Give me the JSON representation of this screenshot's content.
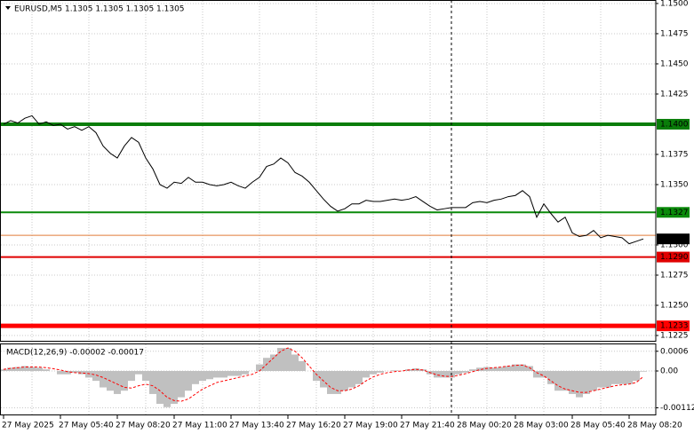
{
  "chart_data": [
    {
      "type": "line",
      "title": "EURUSD,M5  1.1305 1.1305 1.1305 1.1305",
      "x_labels": [
        "27 May 2025",
        "27 May 05:40",
        "27 May 08:20",
        "27 May 11:00",
        "27 May 13:40",
        "27 May 16:20",
        "27 May 19:00",
        "27 May 21:40",
        "28 May 00:20",
        "28 May 03:00",
        "28 May 05:40",
        "28 May 08:20"
      ],
      "series": [
        {
          "color": "#000000",
          "values": [
            1.14,
            1.1403,
            1.1401,
            1.1405,
            1.1407,
            1.14,
            1.1402,
            1.1399,
            1.14,
            1.1396,
            1.1398,
            1.1395,
            1.1398,
            1.1393,
            1.1382,
            1.1376,
            1.1372,
            1.1382,
            1.1389,
            1.1385,
            1.1372,
            1.1363,
            1.135,
            1.1347,
            1.1352,
            1.1351,
            1.1356,
            1.1352,
            1.1352,
            1.135,
            1.1349,
            1.135,
            1.1352,
            1.1349,
            1.1347,
            1.1352,
            1.1356,
            1.1365,
            1.1367,
            1.1372,
            1.1368,
            1.136,
            1.1357,
            1.1352,
            1.1345,
            1.1338,
            1.1332,
            1.1328,
            1.133,
            1.1334,
            1.1334,
            1.1337,
            1.1336,
            1.1336,
            1.1337,
            1.1338,
            1.1337,
            1.1338,
            1.134,
            1.1336,
            1.1332,
            1.1329,
            1.133,
            1.1331,
            1.1331,
            1.1331,
            1.1335,
            1.1336,
            1.1335,
            1.1337,
            1.1338,
            1.134,
            1.1341,
            1.1345,
            1.134,
            1.1323,
            1.1334,
            1.1326,
            1.1319,
            1.1323,
            1.131,
            1.1307,
            1.1308,
            1.1312,
            1.1306,
            1.1308,
            1.1307,
            1.1306,
            1.1301,
            1.1303,
            1.1305
          ]
        }
      ],
      "ylim": [
        1.12206,
        1.15029
      ],
      "yticks": [
        {
          "value": 1.15,
          "label": "1.1500"
        },
        1.1475,
        {
          "value": 1.145,
          "label": "1.1450"
        },
        1.1425,
        1.1375,
        {
          "value": 1.135,
          "label": "1.1350"
        },
        {
          "value": 1.13,
          "label": "1.1300"
        },
        1.1275,
        {
          "value": 1.125,
          "label": "1.1250"
        },
        1.1225
      ],
      "grid": true,
      "levels": [
        {
          "value": 1.14,
          "label": "1.1400",
          "color": "#0a7d0a",
          "width": 4
        },
        {
          "value": 1.1327,
          "label": "1.1327",
          "color": "#0a8a0a",
          "width": 2
        },
        {
          "value": 1.1308,
          "color": "#e07b39",
          "width": 1
        },
        {
          "value": 1.1305,
          "label": "1.1305",
          "color": "#000000",
          "width": 0
        },
        {
          "value": 1.129,
          "label": "1.1290",
          "color": "#e00000",
          "width": 2
        },
        {
          "value": 1.1233,
          "label": "1.1233",
          "color": "#ff0000",
          "width": 5
        }
      ]
    },
    {
      "type": "macd",
      "title": "MACD(12,26,9) -0.00002 -0.00017",
      "series": [
        {
          "color": "#c0c0c0",
          "values": [
            5e-05,
            0.0001,
            0.00012,
            0.00015,
            0.00012,
            0.0001,
            5e-05,
            0,
            -0.0001,
            -0.0001,
            -5e-05,
            -0.0001,
            -0.0002,
            -0.0003,
            -0.0005,
            -0.0006,
            -0.0007,
            -0.0006,
            -0.0003,
            -0.0001,
            -0.0003,
            -0.0007,
            -0.001,
            -0.0011,
            -0.001,
            -0.0008,
            -0.0006,
            -0.0004,
            -0.0003,
            -0.00025,
            -0.0002,
            -0.0002,
            -0.00015,
            -0.00015,
            -0.0001,
            0,
            0.0002,
            0.0004,
            0.0005,
            0.0007,
            0.0007,
            0.0005,
            0.0003,
            0,
            -0.0003,
            -0.0005,
            -0.0007,
            -0.0007,
            -0.0006,
            -0.0005,
            -0.0004,
            -0.0002,
            -0.0001,
            -5e-05,
            0,
            2e-05,
            0,
            5e-05,
            8e-05,
            5e-05,
            -0.0001,
            -0.0002,
            -0.0002,
            -0.0002,
            -0.0001,
            -5e-05,
            5e-05,
            0.0001,
            0.00012,
            0.0001,
            0.00012,
            0.00015,
            0.0002,
            0.0002,
            0.00015,
            -0.0002,
            -0.0002,
            -0.0004,
            -0.0006,
            -0.0006,
            -0.0007,
            -0.0008,
            -0.0007,
            -0.0006,
            -0.0005,
            -0.0005,
            -0.0004,
            -0.0004,
            -0.0004,
            -0.0003,
            -2e-05
          ]
        },
        {
          "color": "#ff0000",
          "values": [
            5e-05,
            8e-05,
            0.0001,
            0.00012,
            0.00012,
            0.00012,
            0.0001,
            7e-05,
            3e-05,
            -2e-05,
            -5e-05,
            -6e-05,
            -8e-05,
            -0.00012,
            -0.0002,
            -0.0003,
            -0.0004,
            -0.0005,
            -0.00052,
            -0.00045,
            -0.0004,
            -0.00045,
            -0.0006,
            -0.0008,
            -0.0009,
            -0.00092,
            -0.00085,
            -0.0007,
            -0.00055,
            -0.00045,
            -0.00035,
            -0.0003,
            -0.00025,
            -0.0002,
            -0.00015,
            -0.0001,
            0,
            0.0002,
            0.0004,
            0.0006,
            0.0007,
            0.0006,
            0.0004,
            0.00015,
            -0.0001,
            -0.0003,
            -0.0005,
            -0.0006,
            -0.0006,
            -0.00055,
            -0.00045,
            -0.0003,
            -0.00018,
            -0.0001,
            -5e-05,
            -2e-05,
            0,
            3e-05,
            5e-05,
            3e-05,
            -5e-05,
            -0.00012,
            -0.00016,
            -0.00017,
            -0.00013,
            -8e-05,
            -2e-05,
            4e-05,
            8e-05,
            0.0001,
            0.00012,
            0.00015,
            0.00017,
            0.00018,
            0.0001,
            -5e-05,
            -0.00015,
            -0.0003,
            -0.00045,
            -0.00055,
            -0.0006,
            -0.00065,
            -0.00065,
            -0.0006,
            -0.00055,
            -0.0005,
            -0.00045,
            -0.00042,
            -0.0004,
            -0.00035,
            -0.00017
          ]
        }
      ],
      "ylim": [
        -0.00135,
        0.00081
      ],
      "yticks": [
        0.0006,
        {
          "value": 0,
          "label": "0.00"
        },
        -0.00112
      ]
    }
  ]
}
